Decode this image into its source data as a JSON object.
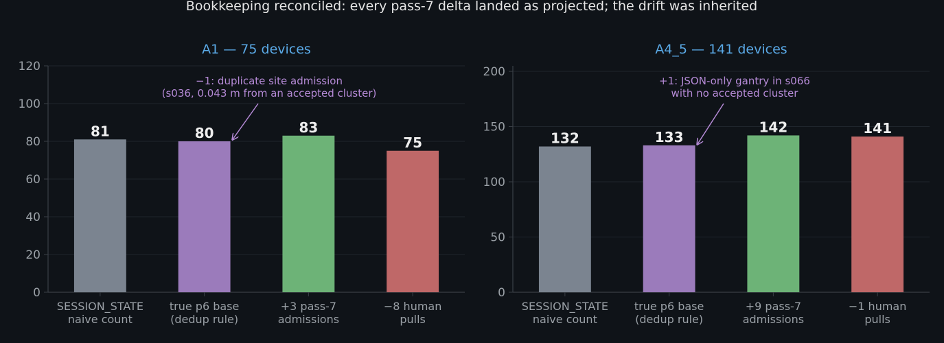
{
  "figure": {
    "suptitle": "Bookkeeping reconciled: every pass-7 delta landed as projected; the drift was inherited"
  },
  "colors": {
    "background": "#0f1318",
    "title": "#e6e6e6",
    "panel_title": "#5aa9e6",
    "axis": "#3a3f46",
    "grid": "#1f252c",
    "tick_label": "#9aa0a6",
    "data_label": "#eeeeee",
    "annotation": "#b58ad6",
    "bar_colors": [
      "#7b8490",
      "#9b7bbb",
      "#6db377",
      "#bf6868"
    ]
  },
  "chart_data": [
    {
      "type": "bar",
      "title": "A1 — 75 devices",
      "categories": [
        "SESSION_STATE\nnaive count",
        "true p6 base\n(dedup rule)",
        "+3 pass-7\nadmissions",
        "−8 human\npulls"
      ],
      "values": [
        81,
        80,
        83,
        75
      ],
      "ylim": [
        0,
        120
      ],
      "yticks": [
        0,
        20,
        40,
        60,
        80,
        100,
        120
      ],
      "grid": true,
      "annotation": {
        "text": "−1: duplicate site admission\n(s036, 0.043 m from an accepted cluster)",
        "target_bar": 1,
        "target_value": 80
      }
    },
    {
      "type": "bar",
      "title": "A4_5 — 141 devices",
      "categories": [
        "SESSION_STATE\nnaive count",
        "true p6 base\n(dedup rule)",
        "+9 pass-7\nadmissions",
        "−1 human\npulls"
      ],
      "values": [
        132,
        133,
        142,
        141
      ],
      "ylim": [
        0,
        205
      ],
      "yticks": [
        0,
        50,
        100,
        150,
        200
      ],
      "grid": true,
      "annotation": {
        "text": "+1: JSON-only gantry in s066\nwith no accepted cluster",
        "target_bar": 1,
        "target_value": 133
      }
    }
  ]
}
